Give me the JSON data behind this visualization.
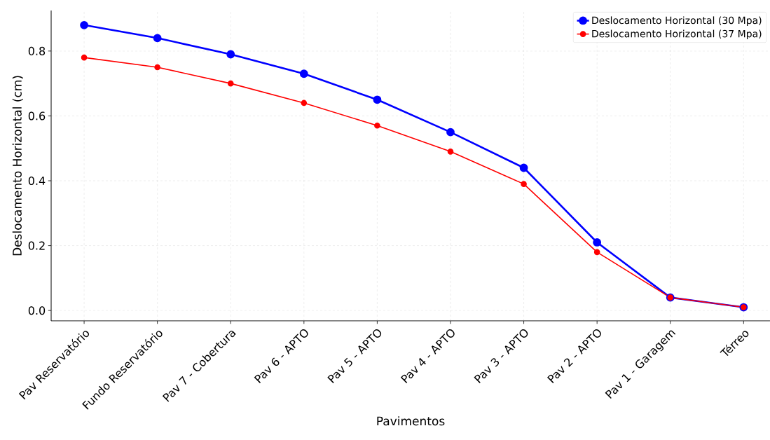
{
  "chart_data": {
    "type": "line",
    "xlabel": "Pavimentos",
    "ylabel": "Deslocamento Horizontal (cm)",
    "categories": [
      "Pav Reservatório",
      "Fundo Reservatório",
      "Pav 7 - Cobertura",
      "Pav 6 - APTO",
      "Pav 5 - APTO",
      "Pav 4 - APTO",
      "Pav 3 - APTO",
      "Pav 2 - APTO",
      "Pav 1 - Garagem",
      "Térreo"
    ],
    "series": [
      {
        "name": "Deslocamento Horizontal (30 Mpa)",
        "color": "#0000ff",
        "values": [
          0.88,
          0.84,
          0.79,
          0.73,
          0.65,
          0.55,
          0.44,
          0.21,
          0.04,
          0.01
        ]
      },
      {
        "name": "Deslocamento Horizontal (37 Mpa)",
        "color": "#ff0000",
        "values": [
          0.78,
          0.75,
          0.7,
          0.64,
          0.57,
          0.49,
          0.39,
          0.18,
          0.04,
          0.01
        ]
      }
    ],
    "ylim": [
      -0.032,
      0.925
    ],
    "yticks": [
      {
        "value": 0,
        "label": "0.0"
      },
      0.2,
      0.4,
      0.6,
      0.8
    ],
    "grid": true,
    "legend": "top right",
    "marker": "circle",
    "line_style": "solid"
  }
}
